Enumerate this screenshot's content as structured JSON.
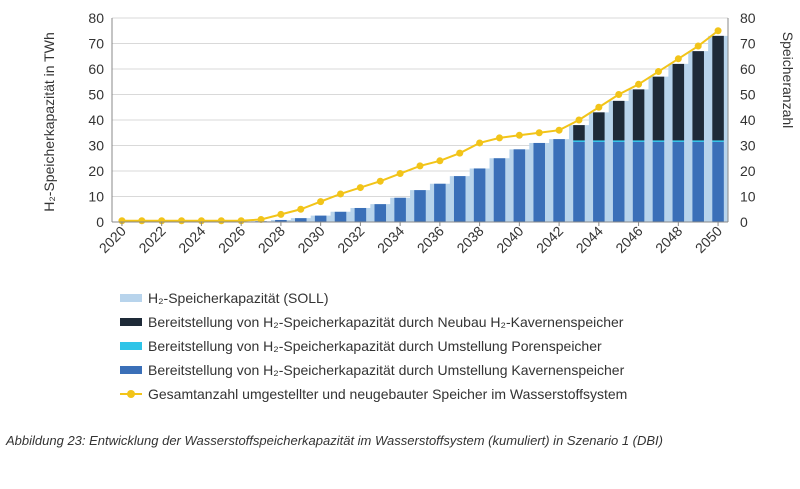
{
  "chart_data": {
    "type": "bar",
    "x": [
      "2020",
      "2021",
      "2022",
      "2023",
      "2024",
      "2025",
      "2026",
      "2027",
      "2028",
      "2029",
      "2030",
      "2031",
      "2032",
      "2033",
      "2034",
      "2035",
      "2036",
      "2037",
      "2038",
      "2039",
      "2040",
      "2041",
      "2042",
      "2043",
      "2044",
      "2045",
      "2046",
      "2047",
      "2048",
      "2049",
      "2050"
    ],
    "x_tick_labels": [
      "2020",
      "2022",
      "2024",
      "2026",
      "2028",
      "2030",
      "2032",
      "2034",
      "2036",
      "2038",
      "2040",
      "2042",
      "2044",
      "2046",
      "2048",
      "2050"
    ],
    "ylabel": "H₂-Speicherkapazität in TWh",
    "y2label": "Speicheranzahl",
    "ylim": [
      0,
      80
    ],
    "y2lim": [
      0,
      80
    ],
    "y_ticks": [
      0,
      10,
      20,
      30,
      40,
      50,
      60,
      70,
      80
    ],
    "y2_ticks": [
      0,
      10,
      20,
      30,
      40,
      50,
      60,
      70,
      80
    ],
    "series": [
      {
        "name": "H₂-Speicherkapazität (SOLL)",
        "kind": "area",
        "color": "#b8d4ec",
        "values": [
          0,
          0,
          0,
          0,
          0,
          0,
          0,
          0.3,
          0.8,
          1.5,
          2.5,
          4,
          5.5,
          7,
          9.5,
          12.5,
          15,
          18,
          21,
          25,
          28.5,
          31,
          32.5,
          38,
          43,
          47.5,
          52,
          57,
          62,
          67,
          73
        ]
      },
      {
        "name": "Bereitstellung von H₂-Speicherkapazität durch Neubau H₂-Kavernenspeicher",
        "kind": "bar-stacked",
        "color": "#1e2a38",
        "values": [
          0,
          0,
          0,
          0,
          0,
          0,
          0,
          0,
          0,
          0,
          0,
          0,
          0,
          0,
          0,
          0,
          0,
          0,
          0,
          0,
          0,
          0,
          0,
          6,
          11,
          15.5,
          20,
          25,
          30,
          35,
          41
        ]
      },
      {
        "name": "Bereitstellung von H₂-Speicherkapazität durch Umstellung Porenspeicher",
        "kind": "bar-stacked",
        "color": "#2ec4e8",
        "values": [
          0,
          0,
          0,
          0,
          0,
          0,
          0,
          0,
          0,
          0,
          0,
          0,
          0,
          0,
          0,
          0,
          0,
          0,
          0,
          0,
          0,
          0,
          0,
          0.6,
          0.6,
          0.6,
          0.6,
          0.6,
          0.6,
          0.6,
          0.6
        ]
      },
      {
        "name": "Bereitstellung von H₂-Speicherkapazität durch Umstellung Kavernenspeicher",
        "kind": "bar-stacked",
        "color": "#3a6fb8",
        "values": [
          0,
          0,
          0,
          0,
          0,
          0,
          0,
          0.3,
          0.8,
          1.5,
          2.5,
          4,
          5.5,
          7,
          9.5,
          12.5,
          15,
          18,
          21,
          25,
          28.5,
          31,
          32.5,
          31.4,
          31.4,
          31.4,
          31.4,
          31.4,
          31.4,
          31.4,
          31.4
        ]
      },
      {
        "name": "Gesamtanzahl umgestellter und neugebauter Speicher im Wasserstoffsystem",
        "kind": "line-markers",
        "axis": "right",
        "color": "#f2c419",
        "values": [
          0.5,
          0.5,
          0.5,
          0.5,
          0.5,
          0.5,
          0.5,
          1,
          3,
          5,
          8,
          11,
          13.5,
          16,
          19,
          22,
          24,
          27,
          31,
          33,
          34,
          35,
          36,
          40,
          45,
          50,
          54,
          59,
          64,
          69,
          75
        ]
      }
    ]
  },
  "legend": {
    "items": [
      {
        "label": "H₂-Speicherkapazität (SOLL)",
        "color": "#b8d4ec"
      },
      {
        "label": "Bereitstellung von H₂-Speicherkapazität durch Neubau H₂-Kavernenspeicher",
        "color": "#1e2a38"
      },
      {
        "label": "Bereitstellung von H₂-Speicherkapazität durch Umstellung Porenspeicher",
        "color": "#2ec4e8"
      },
      {
        "label": "Bereitstellung von H₂-Speicherkapazität durch Umstellung Kavernenspeicher",
        "color": "#3a6fb8"
      },
      {
        "label": "Gesamtanzahl umgestellter und neugebauter Speicher im Wasserstoffsystem",
        "color": "#f2c419"
      }
    ]
  },
  "caption": "Abbildung 23: Entwicklung der Wasserstoffspeicherkapazität im Wasserstoffsystem (kumuliert) in Szenario 1 (DBI)"
}
